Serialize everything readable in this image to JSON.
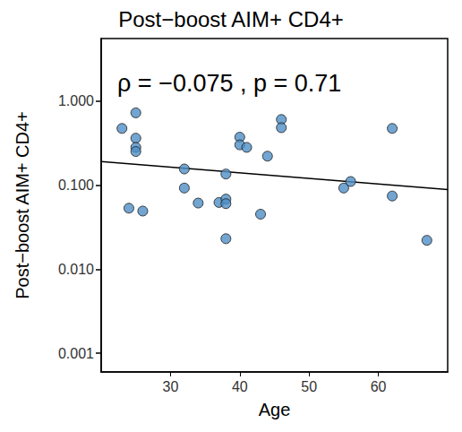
{
  "chart_data": {
    "type": "scatter",
    "title": "Post−boost AIM+ CD4+",
    "x_label": "Age",
    "y_label": "Post−boost AIM+ CD4+",
    "annotation": "ρ = −0.075 , p = 0.71",
    "log": "y",
    "grid": false,
    "color": "#4f8fc6",
    "marker": "circle",
    "x": [
      23,
      24,
      25,
      25,
      25,
      25,
      26,
      32,
      32,
      34,
      37,
      38,
      38,
      38,
      38,
      40,
      40,
      41,
      43,
      44,
      46,
      46,
      55,
      56,
      62,
      62,
      67
    ],
    "values": [
      0.47,
      0.053,
      0.72,
      0.36,
      0.28,
      0.25,
      0.049,
      0.155,
      0.092,
      0.061,
      0.062,
      0.135,
      0.068,
      0.06,
      0.023,
      0.37,
      0.3,
      0.28,
      0.045,
      0.22,
      0.6,
      0.48,
      0.092,
      0.11,
      0.47,
      0.074,
      0.022
    ],
    "trend_line": {
      "x": [
        20,
        70
      ],
      "values": [
        0.19,
        0.088
      ],
      "color": "#000000",
      "line_style": "solid"
    },
    "xlim": [
      20,
      70
    ],
    "xticks": [
      30,
      40,
      50,
      60
    ],
    "ylim": [
      0.0006,
      5.5
    ],
    "yticks": [
      {
        "value": 0.001,
        "label": "0.001"
      },
      {
        "value": 0.01,
        "label": "0.010"
      },
      {
        "value": 0.1,
        "label": "0.100"
      },
      {
        "value": 1,
        "label": "1.000"
      }
    ]
  }
}
